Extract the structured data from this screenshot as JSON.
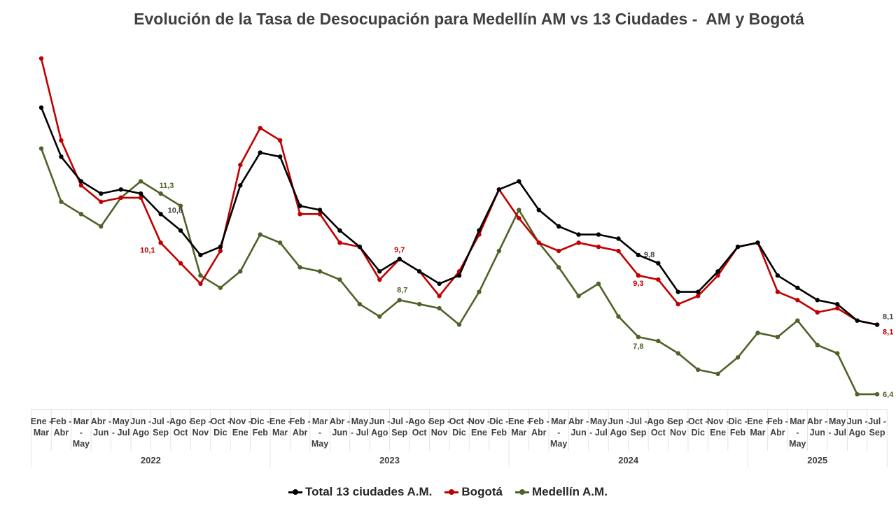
{
  "chart_data": {
    "type": "line",
    "title": "Evolución de la Tasa de Desocupación para Medellín AM vs 13 Ciudades -  AM y Bogotá",
    "groups": [
      {
        "year": "2022",
        "count": 12
      },
      {
        "year": "2023",
        "count": 12
      },
      {
        "year": "2024",
        "count": 12
      },
      {
        "year": "2025",
        "count": 7
      }
    ],
    "categories": [
      "Ene - Mar",
      "Feb - Abr",
      "Mar - - May",
      "Abr - Jun",
      "May - - Jul",
      "Jun - Ago",
      "Jul - Sep",
      "Ago - Oct",
      "Sep - Nov",
      "Oct - Dic",
      "Nov - Ene",
      "Dic - Feb",
      "Ene - Mar",
      "Feb - Abr",
      "Mar - - May",
      "Abr - Jun",
      "May - - Jul",
      "Jun - Ago",
      "Jul - Sep",
      "Ago - Oct",
      "Sep - Nov",
      "Oct - Dic",
      "Nov - Ene",
      "Dic - Feb",
      "Ene - Mar",
      "Feb - Abr",
      "Mar - - May",
      "Abr - Jun",
      "May - - Jul",
      "Jun - Ago",
      "Jul - Sep",
      "Ago - Oct",
      "Sep - Nov",
      "Oct - Dic",
      "Nov - Ene",
      "Dic - Feb",
      "Ene - Mar",
      "Feb - Abr",
      "Mar - - May",
      "Abr - Jun",
      "May - - Jul",
      "Jun - Ago",
      "Jul - Sep"
    ],
    "series": [
      {
        "name": "Total 13 ciudades A.M.",
        "color": "#000000",
        "values": [
          13.4,
          12.2,
          11.6,
          11.3,
          11.4,
          11.3,
          10.8,
          10.4,
          9.8,
          10.0,
          11.5,
          12.3,
          12.2,
          11.0,
          10.9,
          10.4,
          10.0,
          9.4,
          9.7,
          9.4,
          9.1,
          9.3,
          10.4,
          11.4,
          11.6,
          10.9,
          10.5,
          10.3,
          10.3,
          10.2,
          9.8,
          9.6,
          8.9,
          8.9,
          9.4,
          10.0,
          10.1,
          9.3,
          9.0,
          8.7,
          8.6,
          8.2,
          8.1
        ]
      },
      {
        "name": "Bogotá",
        "color": "#c00000",
        "values": [
          14.6,
          12.6,
          11.5,
          11.1,
          11.2,
          11.2,
          10.1,
          9.6,
          9.1,
          9.9,
          12.0,
          12.9,
          12.6,
          10.8,
          10.8,
          10.1,
          10.0,
          9.2,
          9.7,
          9.4,
          8.8,
          9.4,
          10.3,
          11.4,
          10.7,
          10.1,
          9.9,
          10.1,
          10.0,
          9.9,
          9.3,
          9.2,
          8.6,
          8.8,
          9.3,
          10.0,
          10.1,
          8.9,
          8.7,
          8.4,
          8.5,
          8.2,
          8.1
        ]
      },
      {
        "name": "Medellín A.M.",
        "color": "#4f6228",
        "values": [
          12.4,
          11.1,
          10.8,
          10.5,
          11.2,
          11.6,
          11.3,
          11.0,
          9.3,
          9.0,
          9.4,
          10.3,
          10.1,
          9.5,
          9.4,
          9.2,
          8.6,
          8.3,
          8.7,
          8.6,
          8.5,
          8.1,
          8.9,
          9.9,
          10.9,
          10.1,
          9.5,
          8.8,
          9.1,
          8.3,
          7.8,
          7.7,
          7.4,
          7.0,
          6.9,
          7.3,
          7.9,
          7.8,
          8.2,
          7.6,
          7.4,
          6.4,
          6.4
        ]
      }
    ],
    "annotations": [
      {
        "series": 0,
        "index": 6,
        "text": "10,8"
      },
      {
        "series": 2,
        "index": 6,
        "text": "11,3"
      },
      {
        "series": 1,
        "index": 6,
        "text": "10,1"
      },
      {
        "series": 1,
        "index": 18,
        "text": "9,7"
      },
      {
        "series": 2,
        "index": 18,
        "text": "8,7"
      },
      {
        "series": 0,
        "index": 30,
        "text": "9,8"
      },
      {
        "series": 1,
        "index": 30,
        "text": "9,3"
      },
      {
        "series": 2,
        "index": 30,
        "text": "7,8"
      },
      {
        "series": 0,
        "index": 42,
        "text": "8,1"
      },
      {
        "series": 1,
        "index": 42,
        "text": "8,1"
      },
      {
        "series": 2,
        "index": 42,
        "text": "6,4"
      }
    ],
    "xlabel": "",
    "ylabel": "",
    "grid": false,
    "legend": "bottom",
    "y_axis_shown": false
  }
}
